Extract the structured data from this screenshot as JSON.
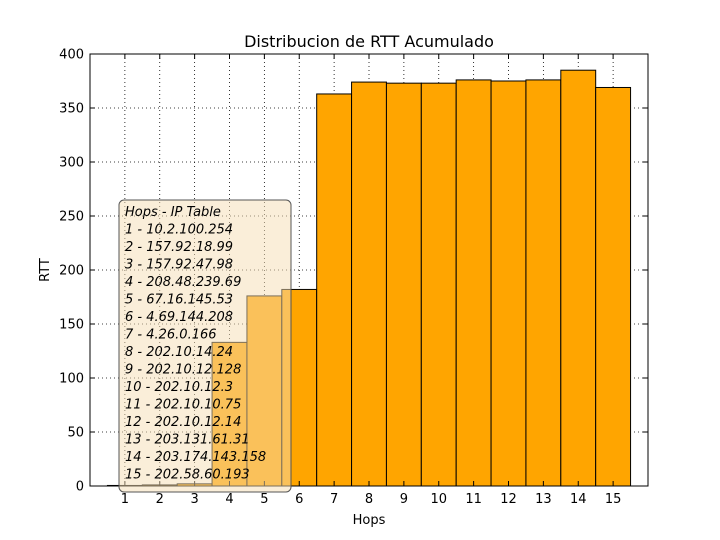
{
  "chart_data": {
    "type": "bar",
    "title": "Distribucion de RTT Acumulado",
    "xlabel": "Hops",
    "ylabel": "RTT",
    "categories": [
      "1",
      "2",
      "3",
      "4",
      "5",
      "6",
      "7",
      "8",
      "9",
      "10",
      "11",
      "12",
      "13",
      "14",
      "15"
    ],
    "values": [
      0.5,
      1,
      2,
      133,
      176,
      182,
      363,
      374,
      373,
      373,
      376,
      375,
      376,
      385,
      369
    ],
    "ylim": [
      0,
      400
    ],
    "yticks": [
      "0",
      "50",
      "100",
      "150",
      "200",
      "250",
      "300",
      "350",
      "400"
    ],
    "grid": true,
    "bar_color": "#FFA500",
    "legend": {
      "placement": "lower-left",
      "title": "Hops - IP Table",
      "entries": [
        "1 - 10.2.100.254",
        "2 - 157.92.18.99",
        "3 - 157.92.47.98",
        "4 - 208.48.239.69",
        "5 - 67.16.145.53",
        "6 - 4.69.144.208",
        "7 - 4.26.0.166",
        "8 - 202.10.14.24",
        "9 - 202.10.12.128",
        "10 - 202.10.12.3",
        "11 - 202.10.10.75",
        "12 - 202.10.12.14",
        "13 - 203.131.61.31",
        "14 - 203.174.143.158",
        "15 - 202.58.60.193"
      ]
    }
  }
}
